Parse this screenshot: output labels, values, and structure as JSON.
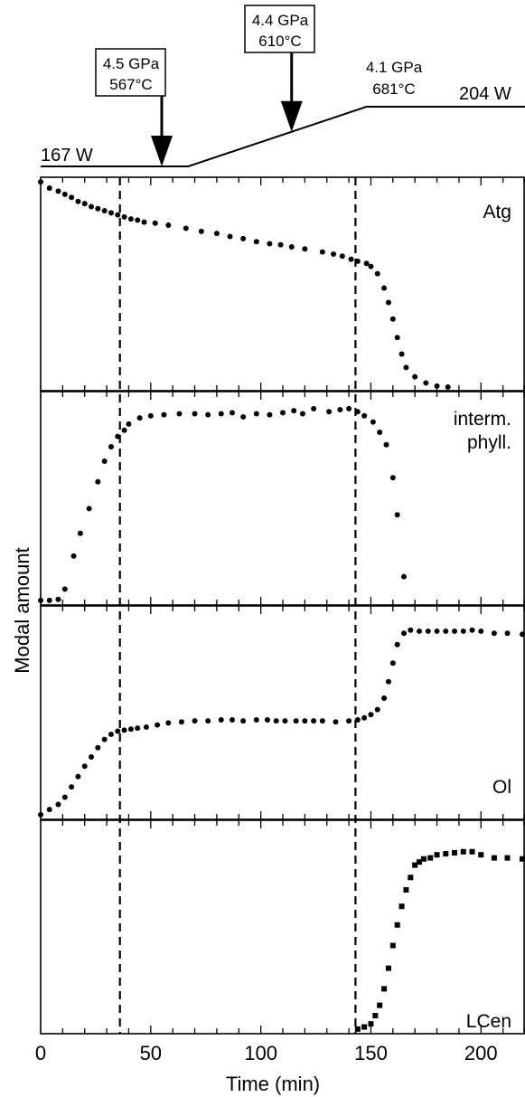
{
  "chart_data": [
    {
      "type": "line",
      "role": "heating-schedule",
      "labels": {
        "start_power": "167 W",
        "end_power": "204 W",
        "point_a": [
          "4.5 GPa",
          "567°C"
        ],
        "point_b": [
          "4.4 GPa",
          "610°C"
        ],
        "point_c": [
          "4.1 GPa",
          "681°C"
        ]
      },
      "x": [
        0,
        67,
        148,
        220
      ],
      "y": [
        167,
        167,
        204,
        204
      ],
      "arrows_at_x": [
        55,
        114
      ]
    },
    {
      "type": "scatter",
      "panel_label": "Atg",
      "marker": "circle",
      "ylim": [
        0,
        1
      ],
      "x": [
        0,
        4,
        8,
        11,
        14,
        17,
        20,
        23,
        26,
        29,
        32,
        35,
        38,
        41,
        44,
        47,
        52,
        58,
        66,
        73,
        80,
        86,
        92,
        98,
        104,
        109,
        114,
        120,
        128,
        133,
        137,
        141,
        144,
        148,
        150,
        153,
        156,
        158,
        160,
        162,
        164,
        166,
        170,
        175,
        180,
        185
      ],
      "y": [
        0.995,
        0.965,
        0.95,
        0.935,
        0.92,
        0.9,
        0.89,
        0.875,
        0.865,
        0.855,
        0.845,
        0.835,
        0.825,
        0.815,
        0.81,
        0.8,
        0.795,
        0.785,
        0.77,
        0.755,
        0.745,
        0.73,
        0.72,
        0.705,
        0.695,
        0.69,
        0.68,
        0.67,
        0.655,
        0.645,
        0.635,
        0.62,
        0.61,
        0.6,
        0.585,
        0.55,
        0.48,
        0.41,
        0.33,
        0.24,
        0.16,
        0.095,
        0.05,
        0.02,
        0.005,
        0.0
      ]
    },
    {
      "type": "scatter",
      "panel_label": [
        "interm.",
        "phyll."
      ],
      "marker": "circle",
      "ylim": [
        0,
        1
      ],
      "x": [
        0,
        4,
        8,
        11,
        15,
        18,
        22,
        26,
        29,
        32,
        35,
        38,
        40,
        45,
        50,
        56,
        63,
        70,
        76,
        82,
        87,
        92,
        98,
        104,
        110,
        115,
        119,
        124,
        131,
        136,
        140,
        144,
        147,
        151,
        154,
        157,
        160,
        162,
        165
      ],
      "y": [
        0.005,
        0.005,
        0.01,
        0.06,
        0.22,
        0.33,
        0.45,
        0.58,
        0.68,
        0.75,
        0.8,
        0.83,
        0.86,
        0.89,
        0.9,
        0.905,
        0.91,
        0.91,
        0.905,
        0.91,
        0.915,
        0.895,
        0.91,
        0.905,
        0.915,
        0.925,
        0.91,
        0.935,
        0.92,
        0.93,
        0.935,
        0.92,
        0.9,
        0.87,
        0.82,
        0.76,
        0.6,
        0.42,
        0.12
      ]
    },
    {
      "type": "scatter",
      "panel_label": "Ol",
      "marker": "circle",
      "ylim": [
        0,
        1
      ],
      "x": [
        0,
        4,
        8,
        11,
        14,
        17,
        20,
        23,
        26,
        29,
        32,
        35,
        38,
        41,
        44,
        48,
        53,
        58,
        64,
        70,
        76,
        82,
        87,
        92,
        98,
        103,
        107,
        111,
        116,
        120,
        124,
        128,
        134,
        140,
        144,
        147,
        150,
        153,
        156,
        158,
        160,
        162,
        165,
        168,
        172,
        176,
        180,
        184,
        188,
        192,
        196,
        200,
        206,
        212,
        220
      ],
      "y": [
        0.005,
        0.03,
        0.055,
        0.09,
        0.14,
        0.19,
        0.24,
        0.285,
        0.33,
        0.37,
        0.395,
        0.41,
        0.415,
        0.42,
        0.425,
        0.43,
        0.44,
        0.45,
        0.455,
        0.46,
        0.46,
        0.465,
        0.465,
        0.46,
        0.465,
        0.465,
        0.46,
        0.46,
        0.46,
        0.46,
        0.46,
        0.46,
        0.455,
        0.46,
        0.465,
        0.475,
        0.49,
        0.515,
        0.57,
        0.65,
        0.74,
        0.83,
        0.885,
        0.9,
        0.895,
        0.895,
        0.895,
        0.895,
        0.895,
        0.895,
        0.9,
        0.895,
        0.885,
        0.885,
        0.88
      ]
    },
    {
      "type": "scatter",
      "panel_label": "LCen",
      "marker": "square",
      "ylim": [
        0,
        1
      ],
      "x": [
        144,
        147,
        150,
        152,
        154,
        156,
        158,
        160,
        162,
        164,
        166,
        168,
        170,
        172,
        174,
        177,
        180,
        184,
        188,
        192,
        196,
        200,
        206,
        212,
        220
      ],
      "y": [
        0.005,
        0.015,
        0.03,
        0.07,
        0.12,
        0.2,
        0.3,
        0.41,
        0.51,
        0.6,
        0.68,
        0.74,
        0.8,
        0.815,
        0.83,
        0.835,
        0.85,
        0.855,
        0.86,
        0.865,
        0.865,
        0.85,
        0.835,
        0.835,
        0.83
      ]
    }
  ],
  "axes": {
    "xlabel": "Time (min)",
    "ylabel": "Modal amount",
    "xlim": [
      0,
      220
    ],
    "xticks": [
      0,
      50,
      100,
      150,
      200
    ],
    "minor_step": 10,
    "dashed_lines_x": [
      36,
      143
    ]
  }
}
